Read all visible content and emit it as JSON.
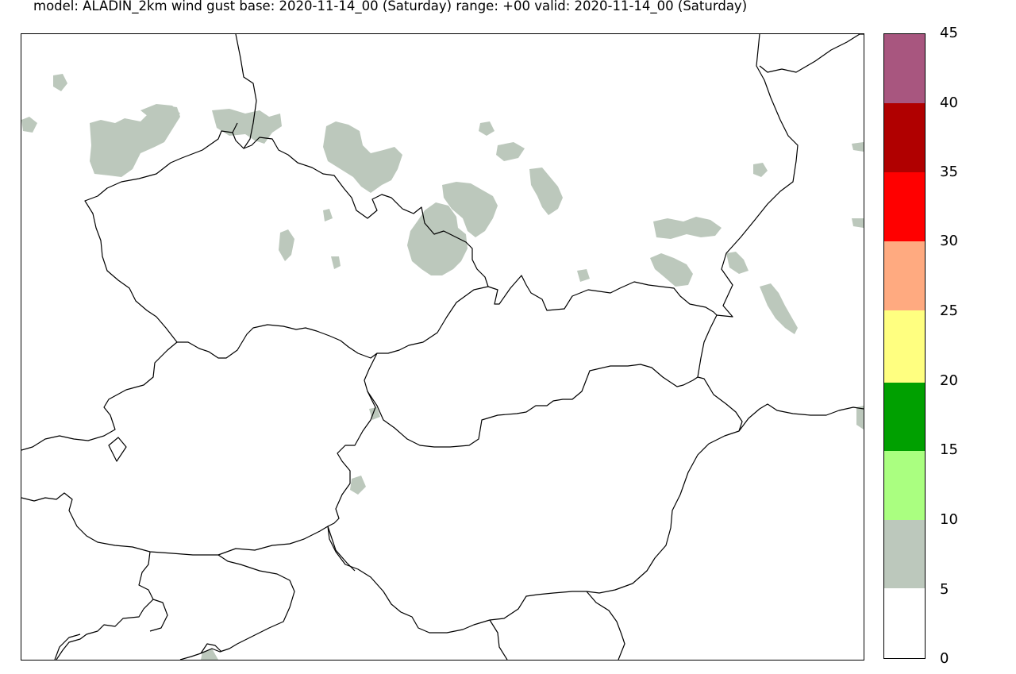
{
  "title": "model: ALADIN_2km wind gust  base:  2020-11-14_00 (Saturday) range: +00 valid: 2020-11-14_00 (Saturday)",
  "legend": {
    "ticks": [
      "45",
      "40",
      "35",
      "30",
      "25",
      "20",
      "15",
      "10",
      "5",
      "0"
    ],
    "bands": [
      {
        "from": 40,
        "to": 45,
        "color": "#a8567f"
      },
      {
        "from": 35,
        "to": 40,
        "color": "#b00000"
      },
      {
        "from": 30,
        "to": 35,
        "color": "#ff0000"
      },
      {
        "from": 25,
        "to": 30,
        "color": "#ffaa80"
      },
      {
        "from": 20,
        "to": 25,
        "color": "#ffff80"
      },
      {
        "from": 15,
        "to": 20,
        "color": "#00a000"
      },
      {
        "from": 10,
        "to": 15,
        "color": "#aaff80"
      },
      {
        "from": 5,
        "to": 10,
        "color": "#bcc8bc"
      },
      {
        "from": 0,
        "to": 5,
        "color": "#ffffff"
      }
    ]
  },
  "map": {
    "fill_color": "#bcc8bc",
    "border_color": "#000000"
  }
}
